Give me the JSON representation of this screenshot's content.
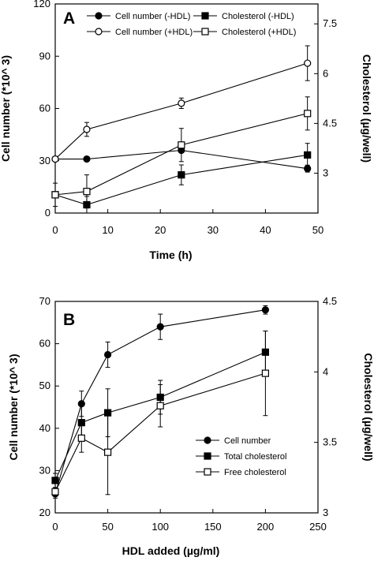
{
  "chart_data": [
    {
      "panel": "A",
      "type": "line",
      "xlabel": "Time   (h)",
      "ylabel_left": "Cell  number  (*10^ 3)",
      "ylabel_right": "Cholesterol   (µg/well)",
      "x_ticks": [
        "0",
        "10",
        "20",
        "30",
        "40",
        "50"
      ],
      "y_left_ticks": [
        "0",
        "30",
        "60",
        "90",
        "120"
      ],
      "y_right_ticks": [
        "3",
        "4.5",
        "6",
        "7.5"
      ],
      "xlim": [
        0,
        50
      ],
      "ylim_left": [
        0,
        120
      ],
      "ylim_right": [
        1.8,
        8.1
      ],
      "grid": false,
      "legend": "top",
      "series": [
        {
          "name": "Cell number (-HDL)",
          "axis": "left",
          "marker": "filled-circle",
          "x": [
            0,
            6,
            24,
            48
          ],
          "values": [
            31,
            31,
            36,
            25.5
          ],
          "error": [
            0,
            0,
            0,
            2
          ]
        },
        {
          "name": "Cell number (+HDL)",
          "axis": "left",
          "marker": "open-circle",
          "x": [
            0,
            6,
            24,
            48
          ],
          "values": [
            31,
            48,
            63,
            86
          ],
          "error": [
            0,
            4,
            3,
            10
          ]
        },
        {
          "name": "Cholesterol (-HDL)",
          "axis": "right",
          "marker": "filled-square",
          "x": [
            0,
            6,
            24,
            48
          ],
          "values": [
            2.35,
            2.05,
            2.95,
            3.55
          ],
          "error": [
            0,
            0.25,
            0.3,
            0.35
          ]
        },
        {
          "name": "Cholesterol (+HDL)",
          "axis": "right",
          "marker": "open-square",
          "x": [
            0,
            6,
            24,
            48
          ],
          "values": [
            2.35,
            2.45,
            3.85,
            4.8
          ],
          "error": [
            0.35,
            0.5,
            0.5,
            0.5
          ]
        }
      ]
    },
    {
      "panel": "B",
      "type": "line",
      "xlabel": "HDL  added  (µg/ml)",
      "ylabel_left": "Cell  number  (*10^ 3)",
      "ylabel_right": "Cholesterol  (µg/well)",
      "x_ticks": [
        "0",
        "50",
        "100",
        "150",
        "200",
        "250"
      ],
      "y_left_ticks": [
        "20",
        "30",
        "40",
        "50",
        "60",
        "70"
      ],
      "y_right_ticks": [
        "3",
        "3.5",
        "4",
        "4.5"
      ],
      "xlim": [
        0,
        250
      ],
      "ylim_left": [
        20,
        70
      ],
      "ylim_right": [
        3,
        4.5
      ],
      "grid": false,
      "legend": "bottom-right",
      "series": [
        {
          "name": "Cell number",
          "axis": "left",
          "marker": "filled-circle",
          "x": [
            0,
            25,
            50,
            100,
            200
          ],
          "values": [
            24.5,
            45.8,
            57.4,
            64,
            68
          ],
          "error": [
            1,
            3,
            3,
            3,
            1
          ]
        },
        {
          "name": "Total cholesterol",
          "axis": "right",
          "marker": "filled-square",
          "x": [
            0,
            25,
            50,
            100,
            200
          ],
          "values": [
            3.23,
            3.64,
            3.71,
            3.82,
            4.14
          ],
          "error": [
            0.05,
            0.12,
            0.17,
            0.12,
            0.15
          ]
        },
        {
          "name": "Free cholesterol",
          "axis": "right",
          "marker": "open-square",
          "x": [
            0,
            25,
            50,
            100,
            200
          ],
          "values": [
            3.15,
            3.53,
            3.43,
            3.76,
            3.99
          ],
          "error": [
            0.03,
            0.1,
            0.3,
            0.15,
            0.3
          ]
        }
      ]
    }
  ]
}
